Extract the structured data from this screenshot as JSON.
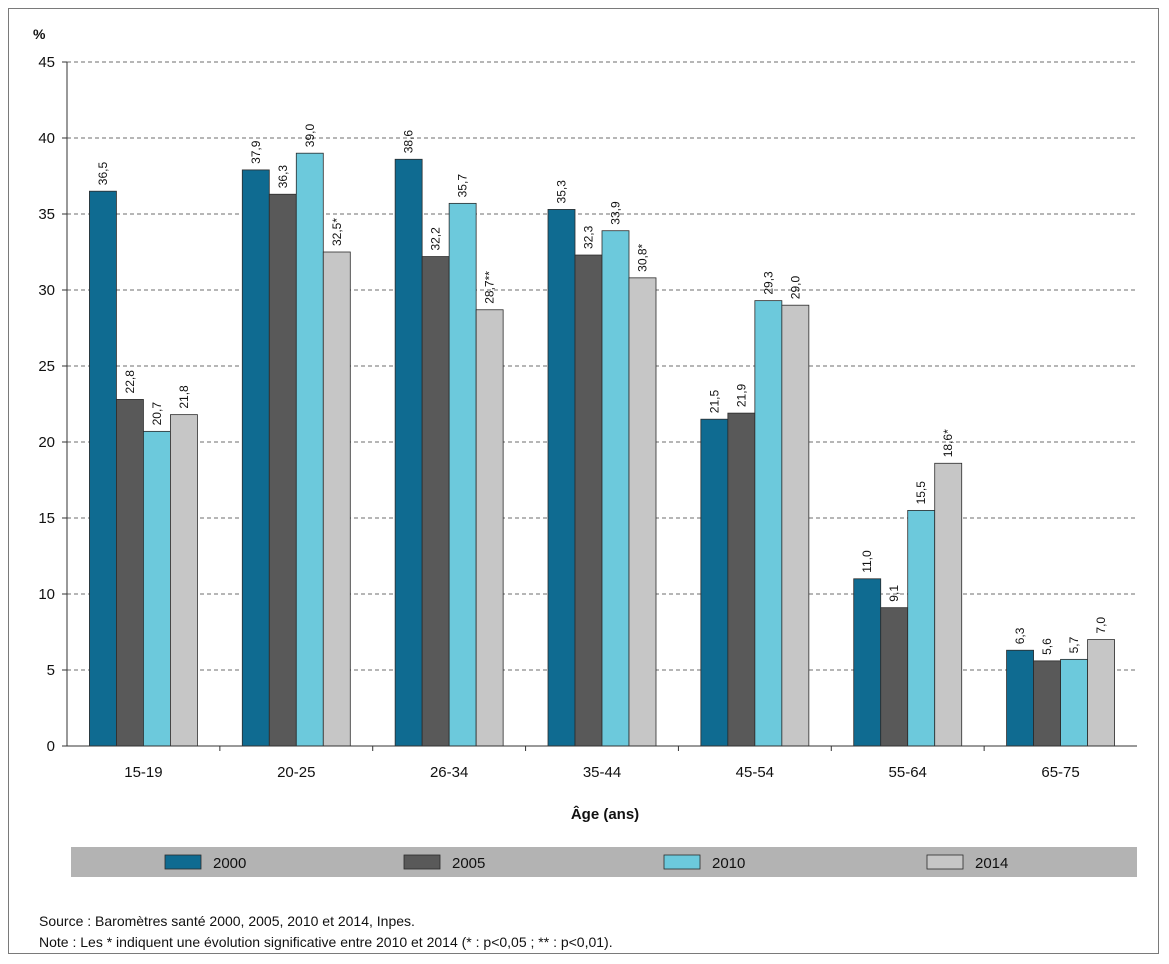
{
  "chart_data": {
    "type": "bar",
    "title": "",
    "ylabel": "%",
    "xlabel": "Âge (ans)",
    "ylim": [
      0,
      45
    ],
    "yticks": [
      0,
      5,
      10,
      15,
      20,
      25,
      30,
      35,
      40,
      45
    ],
    "grid": true,
    "legend_position": "bottom",
    "categories": [
      "15-19",
      "20-25",
      "26-34",
      "35-44",
      "45-54",
      "55-64",
      "65-75"
    ],
    "series": [
      {
        "name": "2000",
        "color": "#0f6b91",
        "values": [
          36.5,
          37.9,
          38.6,
          35.3,
          21.5,
          11.0,
          6.3
        ],
        "labels": [
          "36,5",
          "37,9",
          "38,6",
          "35,3",
          "21,5",
          "11,0",
          "6,3"
        ]
      },
      {
        "name": "2005",
        "color": "#595959",
        "values": [
          22.8,
          36.3,
          32.2,
          32.3,
          21.9,
          9.1,
          5.6
        ],
        "labels": [
          "22,8",
          "36,3",
          "32,2",
          "32,3",
          "21,9",
          "9,1",
          "5,6"
        ]
      },
      {
        "name": "2010",
        "color": "#6cc9dc",
        "values": [
          20.7,
          39.0,
          35.7,
          33.9,
          29.3,
          15.5,
          5.7
        ],
        "labels": [
          "20,7",
          "39,0",
          "35,7",
          "33,9",
          "29,3",
          "15,5",
          "5,7"
        ]
      },
      {
        "name": "2014",
        "color": "#c6c6c6",
        "values": [
          21.8,
          32.5,
          28.7,
          30.8,
          29.0,
          18.6,
          7.0
        ],
        "labels": [
          "21,8",
          "32,5*",
          "28,7**",
          "30,8*",
          "29,0",
          "18,6*",
          "7,0"
        ]
      }
    ]
  },
  "legend_bar_color": "#b3b3b3",
  "notes": {
    "source": "Source : Baromètres santé 2000, 2005, 2010 et 2014, Inpes.",
    "note": "Note : Les * indiquent une évolution significative entre 2010 et 2014 (* : p<0,05 ; ** : p<0,01)."
  }
}
